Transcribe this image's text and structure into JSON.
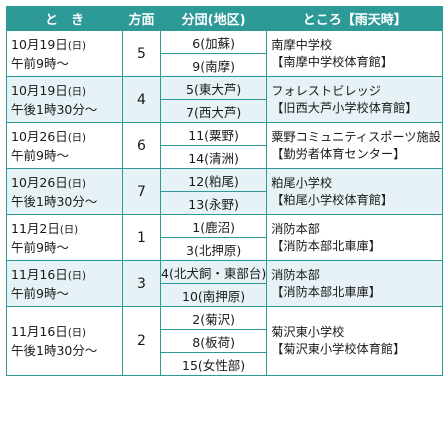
{
  "header": {
    "date": "と　き",
    "number": "方面",
    "branch": "分団(地区)",
    "place": "ところ【雨天時】"
  },
  "groups": [
    {
      "date_line1": "10月19日",
      "youbi": "(日)",
      "date_line2": "午前9時～",
      "number": "5",
      "branches": [
        "6(加蘇)",
        "9(南摩)"
      ],
      "place_line1": "南摩中学校",
      "place_line2": "【南摩中学校体育館】"
    },
    {
      "date_line1": "10月19日",
      "youbi": "(日)",
      "date_line2": "午後1時30分～",
      "number": "4",
      "branches": [
        "5(東大芦)",
        "7(西大芦)"
      ],
      "place_line1": "フォレストビレッジ",
      "place_line2": "【旧西大芦小学校体育館】"
    },
    {
      "date_line1": "10月26日",
      "youbi": "(日)",
      "date_line2": "午前9時～",
      "number": "6",
      "branches": [
        "11(粟野)",
        "14(清洲)"
      ],
      "place_line1": "粟野コミュニティスポーツ施設",
      "place_line2": "【勤労者体育センター】"
    },
    {
      "date_line1": "10月26日",
      "youbi": "(日)",
      "date_line2": "午後1時30分～",
      "number": "7",
      "branches": [
        "12(粕尾)",
        "13(永野)"
      ],
      "place_line1": "粕尾小学校",
      "place_line2": "【粕尾小学校体育館】"
    },
    {
      "date_line1": "11月2日",
      "youbi": "(日)",
      "date_line2": "午前9時～",
      "number": "1",
      "branches": [
        "1(鹿沼)",
        "3(北押原)"
      ],
      "place_line1": "消防本部",
      "place_line2": "【消防本部北車庫】"
    },
    {
      "date_line1": "11月16日",
      "youbi": "(日)",
      "date_line2": "午前9時～",
      "number": "3",
      "branches": [
        "4(北犬飼・東部台)",
        "10(南押原)"
      ],
      "place_line1": "消防本部",
      "place_line2": "【消防本部北車庫】"
    },
    {
      "date_line1": "11月16日",
      "youbi": "(日)",
      "date_line2": "午後1時30分～",
      "number": "2",
      "branches": [
        "2(菊沢)",
        "8(板荷)",
        "15(女性部)"
      ],
      "place_line1": "菊沢東小学校",
      "place_line2": "【菊沢東小学校体育館】"
    }
  ],
  "colors": {
    "header_bg": "#2e9a98",
    "shaded_row": "#e6f2f5",
    "border": "#2e9a98"
  }
}
